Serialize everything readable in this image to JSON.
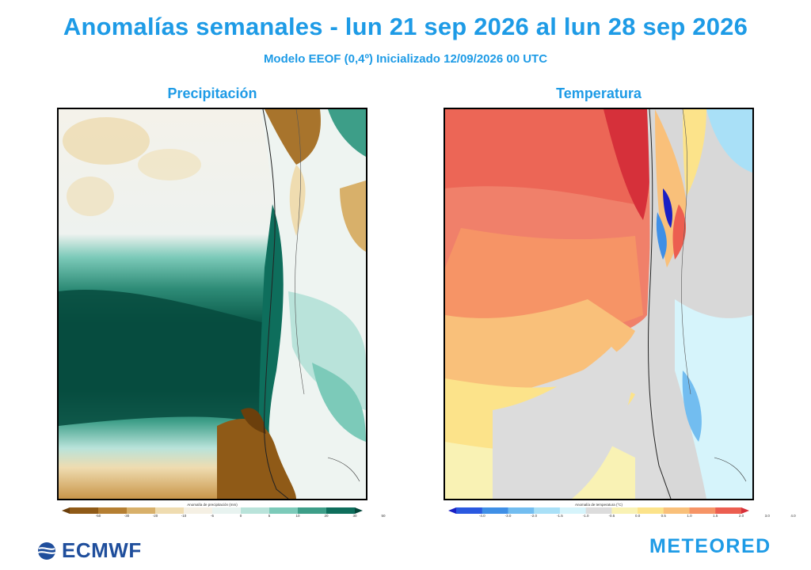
{
  "header": {
    "title": "Anomalías semanales - lun 21 sep 2026 al lun 28 sep 2026",
    "subtitle": "Modelo EEOF  (0,4º)  Inicializado 12/09/2026 00 UTC"
  },
  "panels": {
    "precip": {
      "title": "Precipitación",
      "colorbar_title": "Anomalía de precipitación (mm)",
      "ticks": [
        "-50",
        "-30",
        "-20",
        "-10",
        "-5",
        "0",
        "5",
        "10",
        "20",
        "30",
        "50"
      ],
      "colors": [
        "#6b3f0c",
        "#8f5a17",
        "#b57f32",
        "#d8b06a",
        "#efdcb0",
        "#f5f0e4",
        "#e8f3f0",
        "#b9e3da",
        "#7ccab9",
        "#3d9e88",
        "#0e6e5c",
        "#04463a"
      ]
    },
    "temp": {
      "title": "Temperatura",
      "colorbar_title": "Anomalía de temperatura (°C)",
      "ticks": [
        "-4.0",
        "-3.0",
        "-2.0",
        "-1.5",
        "-1.0",
        "-0.5",
        "0.0",
        "0.5",
        "1.0",
        "1.5",
        "2.0",
        "3.0",
        "4.0"
      ],
      "colors": [
        "#1a1fc4",
        "#2a58e0",
        "#3f8fe6",
        "#72bdf0",
        "#a9e0f7",
        "#d6f4fb",
        "#dcdcdc",
        "#f9f2b4",
        "#fce38a",
        "#f9c07a",
        "#f69466",
        "#ec5e50",
        "#d6303a"
      ]
    }
  },
  "logos": {
    "left": "ECMWF",
    "right": "METEORED"
  }
}
